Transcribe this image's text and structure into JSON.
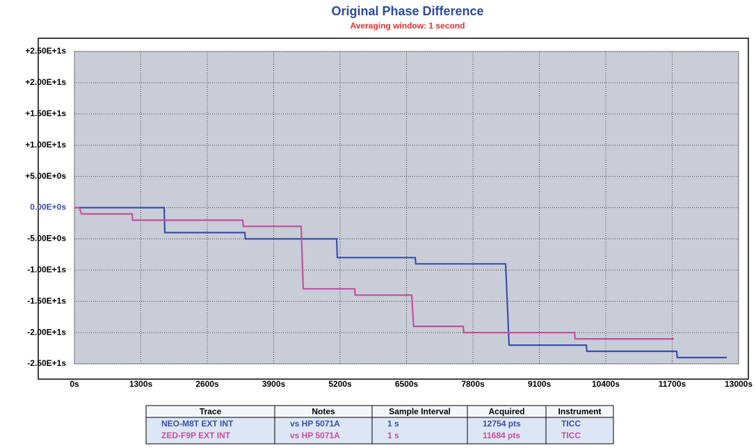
{
  "chart_data": {
    "type": "line",
    "title": "Original Phase Difference",
    "subtitle": "Averaging window: 1 second",
    "xlim": [
      0,
      13000
    ],
    "xticks": [
      {
        "value": 0,
        "label": "0s"
      },
      {
        "value": 1300,
        "label": "1300s"
      },
      {
        "value": 2600,
        "label": "2600s"
      },
      {
        "value": 3900,
        "label": "3900s"
      },
      {
        "value": 5200,
        "label": "5200s"
      },
      {
        "value": 6500,
        "label": "6500s"
      },
      {
        "value": 7800,
        "label": "7800s"
      },
      {
        "value": 9100,
        "label": "9100s"
      },
      {
        "value": 10400,
        "label": "10400s"
      },
      {
        "value": 11700,
        "label": "11700s"
      },
      {
        "value": 13000,
        "label": "13000s"
      }
    ],
    "ylim": [
      -25,
      25
    ],
    "yticks": [
      {
        "value": 25,
        "label": "+2.50E+1s"
      },
      {
        "value": 20,
        "label": "+2.00E+1s"
      },
      {
        "value": 15,
        "label": "+1.50E+1s"
      },
      {
        "value": 10,
        "label": "+1.00E+1s"
      },
      {
        "value": 5,
        "label": "+5.00E+0s"
      },
      {
        "value": 0,
        "label": "0.00E+0s"
      },
      {
        "value": -5,
        "label": "-5.00E+0s"
      },
      {
        "value": -10,
        "label": "-1.00E+1s"
      },
      {
        "value": -15,
        "label": "-1.50E+1s"
      },
      {
        "value": -20,
        "label": "-2.00E+1s"
      },
      {
        "value": -25,
        "label": "-2.50E+1s"
      }
    ],
    "grid": true,
    "series": [
      {
        "name": "NEO-M8T EXT INT",
        "color": "#3a4fa8",
        "x": [
          0,
          1756,
          1770,
          3335,
          3345,
          5132,
          5145,
          6670,
          6680,
          8440,
          8508,
          10019,
          10030,
          11789,
          11800,
          12769
        ],
        "values": [
          0,
          0,
          -4,
          -4,
          -5,
          -5,
          -8,
          -8,
          -9,
          -9,
          -22,
          -22,
          -23,
          -23,
          -24,
          -24
        ]
      },
      {
        "name": "ZED-F9P EXT INT",
        "color": "#c4509e",
        "x": [
          0,
          100,
          136,
          1130,
          1140,
          3294,
          3305,
          4438,
          4479,
          5486,
          5497,
          6602,
          6640,
          7610,
          7620,
          9788,
          9800,
          11734
        ],
        "values": [
          0,
          0,
          -1,
          -1,
          -2,
          -2,
          -3,
          -3,
          -13,
          -13,
          -14,
          -14,
          -19,
          -19,
          -20,
          -20,
          -21,
          -21
        ]
      }
    ],
    "table": {
      "columns": [
        "Trace",
        "Notes",
        "Sample Interval",
        "Acquired",
        "Instrument"
      ],
      "rows": [
        [
          "NEO-M8T EXT INT",
          "vs HP 5071A",
          "1 s",
          "12754 pts",
          "TICC"
        ],
        [
          "ZED-F9P EXT INT",
          "vs HP 5071A",
          "1 s",
          "11684 pts",
          "TICC"
        ]
      ]
    }
  }
}
